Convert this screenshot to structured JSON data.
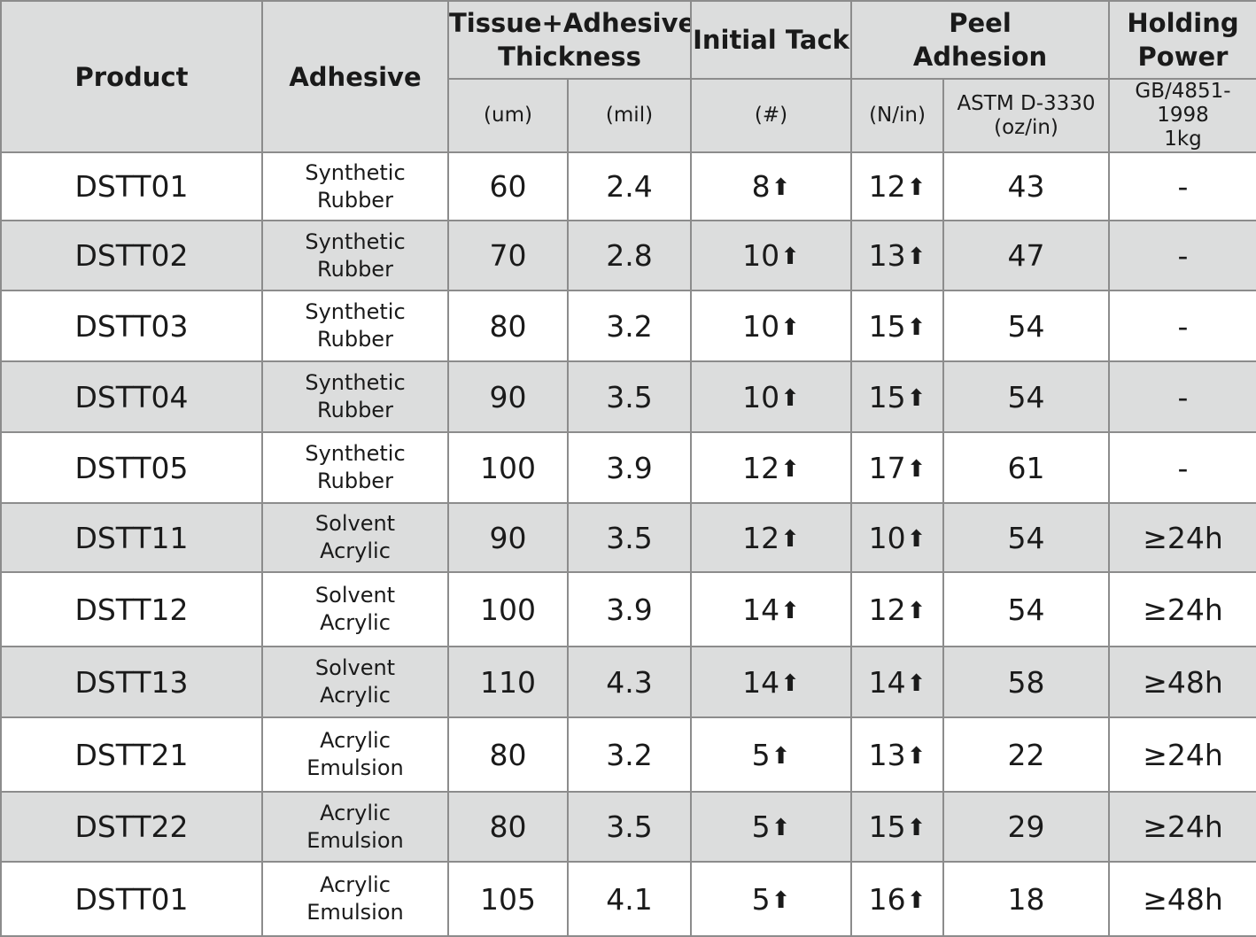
{
  "headers": {
    "product": "Product",
    "adhesive": "Adhesive",
    "thickness": [
      "Tissue+Adhesive",
      "Thickness"
    ],
    "initial_tack": "Initial Tack",
    "peel": [
      "Peel",
      "Adhesion"
    ],
    "holding": [
      "Holding",
      "Power"
    ],
    "units": {
      "um": "(um)",
      "mil": "(mil)",
      "tack": "(#)",
      "nin": "(N/in)",
      "astm": [
        "ASTM D-3330",
        "(oz/in)"
      ],
      "gb": [
        "GB/4851-1998",
        "1kg"
      ]
    }
  },
  "arrow_icon": "up-arrow-icon",
  "rows": [
    {
      "product": "DSTT01",
      "adhesive": [
        "Synthetic",
        "Rubber"
      ],
      "um": "60",
      "mil": "2.4",
      "tack": "8",
      "nin": "12",
      "ozin": "43",
      "hold": "-"
    },
    {
      "product": "DSTT02",
      "adhesive": [
        "Synthetic",
        "Rubber"
      ],
      "um": "70",
      "mil": "2.8",
      "tack": "10",
      "nin": "13",
      "ozin": "47",
      "hold": "-"
    },
    {
      "product": "DSTT03",
      "adhesive": [
        "Synthetic",
        "Rubber"
      ],
      "um": "80",
      "mil": "3.2",
      "tack": "10",
      "nin": "15",
      "ozin": "54",
      "hold": "-"
    },
    {
      "product": "DSTT04",
      "adhesive": [
        "Synthetic",
        "Rubber"
      ],
      "um": "90",
      "mil": "3.5",
      "tack": "10",
      "nin": "15",
      "ozin": "54",
      "hold": "-"
    },
    {
      "product": "DSTT05",
      "adhesive": [
        "Synthetic",
        "Rubber"
      ],
      "um": "100",
      "mil": "3.9",
      "tack": "12",
      "nin": "17",
      "ozin": "61",
      "hold": "-"
    },
    {
      "product": "DSTT11",
      "adhesive": [
        "Solvent",
        "Acrylic"
      ],
      "um": "90",
      "mil": "3.5",
      "tack": "12",
      "nin": "10",
      "ozin": "54",
      "hold": "≥24h"
    },
    {
      "product": "DSTT12",
      "adhesive": [
        "Solvent",
        "Acrylic"
      ],
      "um": "100",
      "mil": "3.9",
      "tack": "14",
      "nin": "12",
      "ozin": "54",
      "hold": "≥24h"
    },
    {
      "product": "DSTT13",
      "adhesive": [
        "Solvent",
        "Acrylic"
      ],
      "um": "110",
      "mil": "4.3",
      "tack": "14",
      "nin": "14",
      "ozin": "58",
      "hold": "≥48h"
    },
    {
      "product": "DSTT21",
      "adhesive": [
        "Acrylic",
        "Emulsion"
      ],
      "um": "80",
      "mil": "3.2",
      "tack": "5",
      "nin": "13",
      "ozin": "22",
      "hold": "≥24h"
    },
    {
      "product": "DSTT22",
      "adhesive": [
        "Acrylic",
        "Emulsion"
      ],
      "um": "80",
      "mil": "3.5",
      "tack": "5",
      "nin": "15",
      "ozin": "29",
      "hold": "≥24h"
    },
    {
      "product": "DSTT01",
      "adhesive": [
        "Acrylic",
        "Emulsion"
      ],
      "um": "105",
      "mil": "4.1",
      "tack": "5",
      "nin": "16",
      "ozin": "18",
      "hold": "≥48h"
    }
  ]
}
